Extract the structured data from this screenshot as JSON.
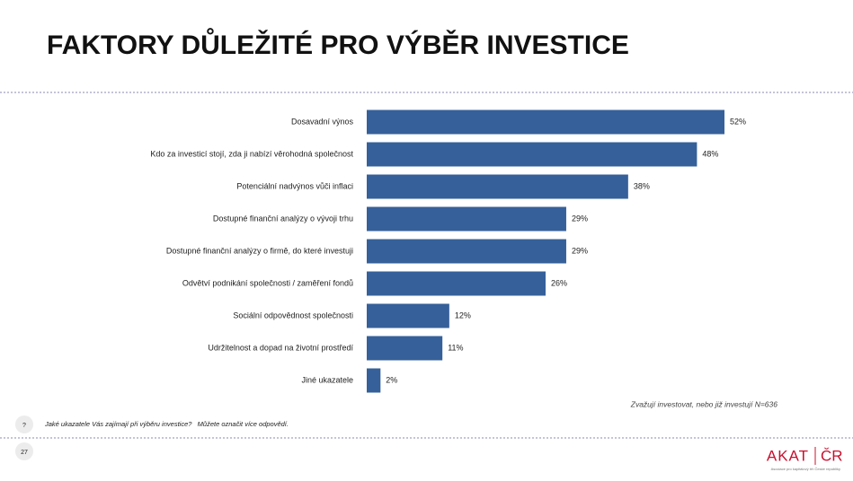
{
  "chart_data": {
    "type": "bar",
    "orientation": "horizontal",
    "categories": [
      "Dosavadní výnos",
      "Kdo za investicí stojí, zda ji nabízí věrohodná společnost",
      "Potenciální nadvýnos vůči inflaci",
      "Dostupné finanční analýzy o vývoji trhu",
      "Dostupné finanční analýzy o firmě, do které investuji",
      "Odvětví podnikání společnosti / zaměření fondů",
      "Sociální odpovědnost společnosti",
      "Udržitelnost a dopad na životní prostředí",
      "Jiné ukazatele"
    ],
    "values": [
      52,
      48,
      38,
      29,
      29,
      26,
      12,
      11,
      2
    ],
    "value_labels": [
      "52%",
      "48%",
      "38%",
      "29%",
      "29%",
      "26%",
      "12%",
      "11%",
      "2%"
    ],
    "color": "#36609a",
    "note": "Zvažují investovat, nebo již investují N=636"
  },
  "slide": {
    "title": "FAKTORY DŮLEŽITÉ PRO VÝBĚR INVESTICE",
    "question_icon": "?",
    "question": "Jaké ukazatele Vás zajímají při výběru investice?   Můžete označit více odpovědí.",
    "page_number": "27",
    "logo_left": "AKAT",
    "logo_right": "ČR",
    "logo_subtitle": "Asociace pro kapitálový trh České republiky"
  }
}
